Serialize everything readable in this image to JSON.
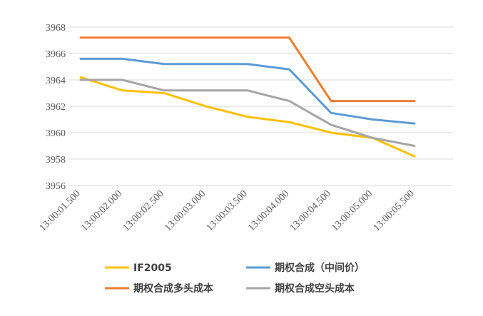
{
  "chart_data": {
    "type": "line",
    "categories": [
      "13:00:01.500",
      "13:00:02.000",
      "13:00:02.500",
      "13:00:03.000",
      "13:00:03.500",
      "13:00:04.000",
      "13:00:04.500",
      "13:00:05.000",
      "13:00:05.500"
    ],
    "x": [
      "13:00:01.500",
      "13:00:02.000",
      "13:00:02.500",
      "13:00:03.000",
      "13:00:03.500",
      "13:00:04.000",
      "13:00:04.500",
      "13:00:05.000",
      "13:00:05.500"
    ],
    "ylim": [
      3956,
      3968
    ],
    "yticks": [
      3956,
      3958,
      3960,
      3962,
      3964,
      3966,
      3968
    ],
    "grid": true,
    "legend_position": "bottom",
    "series": [
      {
        "name": "IF2005",
        "color": "#FFC000",
        "values": [
          3964.2,
          3963.2,
          3963.0,
          3962.0,
          3961.2,
          3960.8,
          3960.0,
          3959.6,
          3958.2
        ]
      },
      {
        "name": "期权合成（中间价）",
        "color": "#5B9BD5",
        "values": [
          3965.6,
          3965.6,
          3965.2,
          3965.2,
          3965.2,
          3964.8,
          3961.5,
          3961.0,
          3960.7
        ]
      },
      {
        "name": "期权合成多头成本",
        "color": "#ED7D31",
        "values": [
          3967.2,
          3967.2,
          3967.2,
          3967.2,
          3967.2,
          3967.2,
          3962.4,
          3962.4,
          3962.4
        ]
      },
      {
        "name": "期权合成空头成本",
        "color": "#A5A5A5",
        "values": [
          3964.0,
          3964.0,
          3963.2,
          3963.2,
          3963.2,
          3962.4,
          3960.6,
          3959.6,
          3959.0
        ]
      }
    ]
  }
}
